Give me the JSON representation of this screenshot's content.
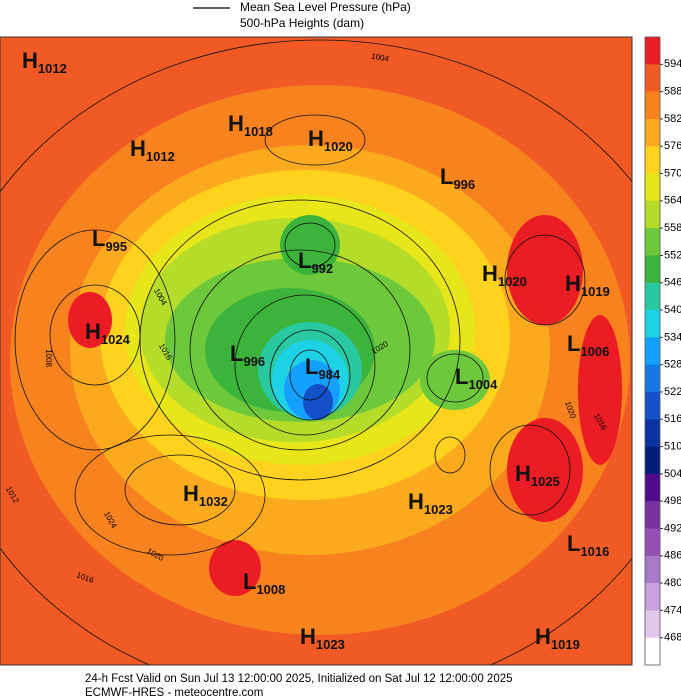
{
  "legend": {
    "line_label": "Mean Sea Level Pressure (hPa)",
    "fill_label": "500-hPa Heights (dam)"
  },
  "centers": [
    {
      "letter": "H",
      "value": 1012
    },
    {
      "letter": "H",
      "value": 1012
    },
    {
      "letter": "H",
      "value": 1018
    },
    {
      "letter": "H",
      "value": 1020
    },
    {
      "letter": "L",
      "value": 996
    },
    {
      "letter": "L",
      "value": 995
    },
    {
      "letter": "L",
      "value": 992
    },
    {
      "letter": "H",
      "value": 1020
    },
    {
      "letter": "H",
      "value": 1019
    },
    {
      "letter": "H",
      "value": 1024
    },
    {
      "letter": "L",
      "value": 996
    },
    {
      "letter": "L",
      "value": 984
    },
    {
      "letter": "L",
      "value": 1004
    },
    {
      "letter": "L",
      "value": 1006
    },
    {
      "letter": "H",
      "value": 1025
    },
    {
      "letter": "H",
      "value": 1032
    },
    {
      "letter": "H",
      "value": 1023
    },
    {
      "letter": "L",
      "value": 1016
    },
    {
      "letter": "L",
      "value": 1008
    },
    {
      "letter": "H",
      "value": 1023
    },
    {
      "letter": "H",
      "value": 1019
    }
  ],
  "contour_labels": [
    1004,
    1020,
    1012,
    1024,
    1020,
    1016,
    1008,
    1016,
    1020,
    1016,
    1004
  ],
  "colorbar": {
    "levels": [
      594,
      588,
      582,
      576,
      570,
      564,
      558,
      552,
      546,
      540,
      534,
      528,
      522,
      516,
      510,
      504,
      498,
      492,
      486,
      480,
      474,
      468
    ],
    "colors": [
      "#ec1c24",
      "#f15a24",
      "#f7821e",
      "#fbaa1e",
      "#ffd21e",
      "#e6e619",
      "#b4dc28",
      "#6ec83c",
      "#3cb43c",
      "#28c8a0",
      "#1ed2e6",
      "#14a0ff",
      "#1478e6",
      "#1450c8",
      "#0a32a0",
      "#001e78",
      "#500a8c",
      "#7832a0",
      "#9650b4",
      "#aa78c8",
      "#c8a0dc",
      "#e1c8eb",
      "#ffffff"
    ]
  },
  "footer": {
    "valid": "24-h Fcst Valid on Sun Jul 13 12:00:00 2025, Initialized on Sat Jul 12 12:00:00 2025",
    "model": "ECMWF-HRES  - meteocentre.com"
  }
}
